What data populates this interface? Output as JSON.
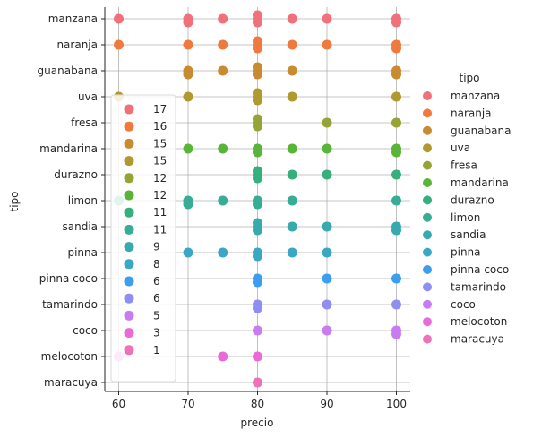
{
  "chart_data": {
    "type": "scatter",
    "xlabel": "precio",
    "ylabel": "tipo",
    "xlim": [
      58,
      102
    ],
    "x_ticks": [
      60,
      70,
      80,
      90,
      100
    ],
    "categories": [
      "manzana",
      "naranja",
      "guanabana",
      "uva",
      "fresa",
      "mandarina",
      "durazno",
      "limon",
      "sandia",
      "pinna",
      "pinna coco",
      "tamarindo",
      "coco",
      "melocoton",
      "maracuya"
    ],
    "colors": [
      "#f0717a",
      "#f07a3e",
      "#c98b30",
      "#b0992e",
      "#96a436",
      "#59b537",
      "#35af7b",
      "#37ad96",
      "#38a9ac",
      "#3aa8c4",
      "#3b9ef0",
      "#8e8ff0",
      "#c97cf0",
      "#ea6ad8",
      "#ee72b6"
    ],
    "grid": true,
    "points": [
      {
        "tipo": "manzana",
        "precio": [
          60,
          70,
          70,
          75,
          80,
          80,
          80,
          85,
          90,
          100,
          100
        ]
      },
      {
        "tipo": "naranja",
        "precio": [
          60,
          70,
          75,
          80,
          80,
          80,
          85,
          90,
          100,
          100
        ]
      },
      {
        "tipo": "guanabana",
        "precio": [
          70,
          70,
          75,
          80,
          80,
          80,
          85,
          100,
          100
        ]
      },
      {
        "tipo": "uva",
        "precio": [
          60,
          70,
          80,
          80,
          80,
          85,
          100
        ]
      },
      {
        "tipo": "fresa",
        "precio": [
          80,
          80,
          80,
          90,
          100
        ]
      },
      {
        "tipo": "mandarina",
        "precio": [
          70,
          75,
          80,
          80,
          85,
          90,
          100,
          100
        ]
      },
      {
        "tipo": "durazno",
        "precio": [
          80,
          80,
          80,
          85,
          90,
          100
        ]
      },
      {
        "tipo": "limon",
        "precio": [
          60,
          70,
          70,
          75,
          80,
          80,
          85,
          100
        ]
      },
      {
        "tipo": "sandia",
        "precio": [
          80,
          80,
          80,
          85,
          90,
          100,
          100
        ]
      },
      {
        "tipo": "pinna",
        "precio": [
          70,
          75,
          80,
          80,
          85,
          90
        ]
      },
      {
        "tipo": "pinna coco",
        "precio": [
          80,
          80,
          90,
          100
        ]
      },
      {
        "tipo": "tamarindo",
        "precio": [
          80,
          80,
          90,
          100
        ]
      },
      {
        "tipo": "coco",
        "precio": [
          80,
          90,
          100,
          100
        ]
      },
      {
        "tipo": "melocoton",
        "precio": [
          60,
          75,
          80
        ]
      },
      {
        "tipo": "maracuya",
        "precio": [
          80
        ]
      }
    ],
    "legend": {
      "title": "tipo",
      "placement": "right",
      "entries": [
        "manzana",
        "naranja",
        "guanabana",
        "uva",
        "fresa",
        "mandarina",
        "durazno",
        "limon",
        "sandia",
        "pinna",
        "pinna coco",
        "tamarindo",
        "coco",
        "melocoton",
        "maracuya"
      ]
    },
    "inner_legend": {
      "placement": "lower-left",
      "labels": [
        "17",
        "16",
        "15",
        "15",
        "12",
        "12",
        "11",
        "11",
        "9",
        "8",
        "6",
        "6",
        "5",
        "3",
        "1"
      ]
    }
  }
}
